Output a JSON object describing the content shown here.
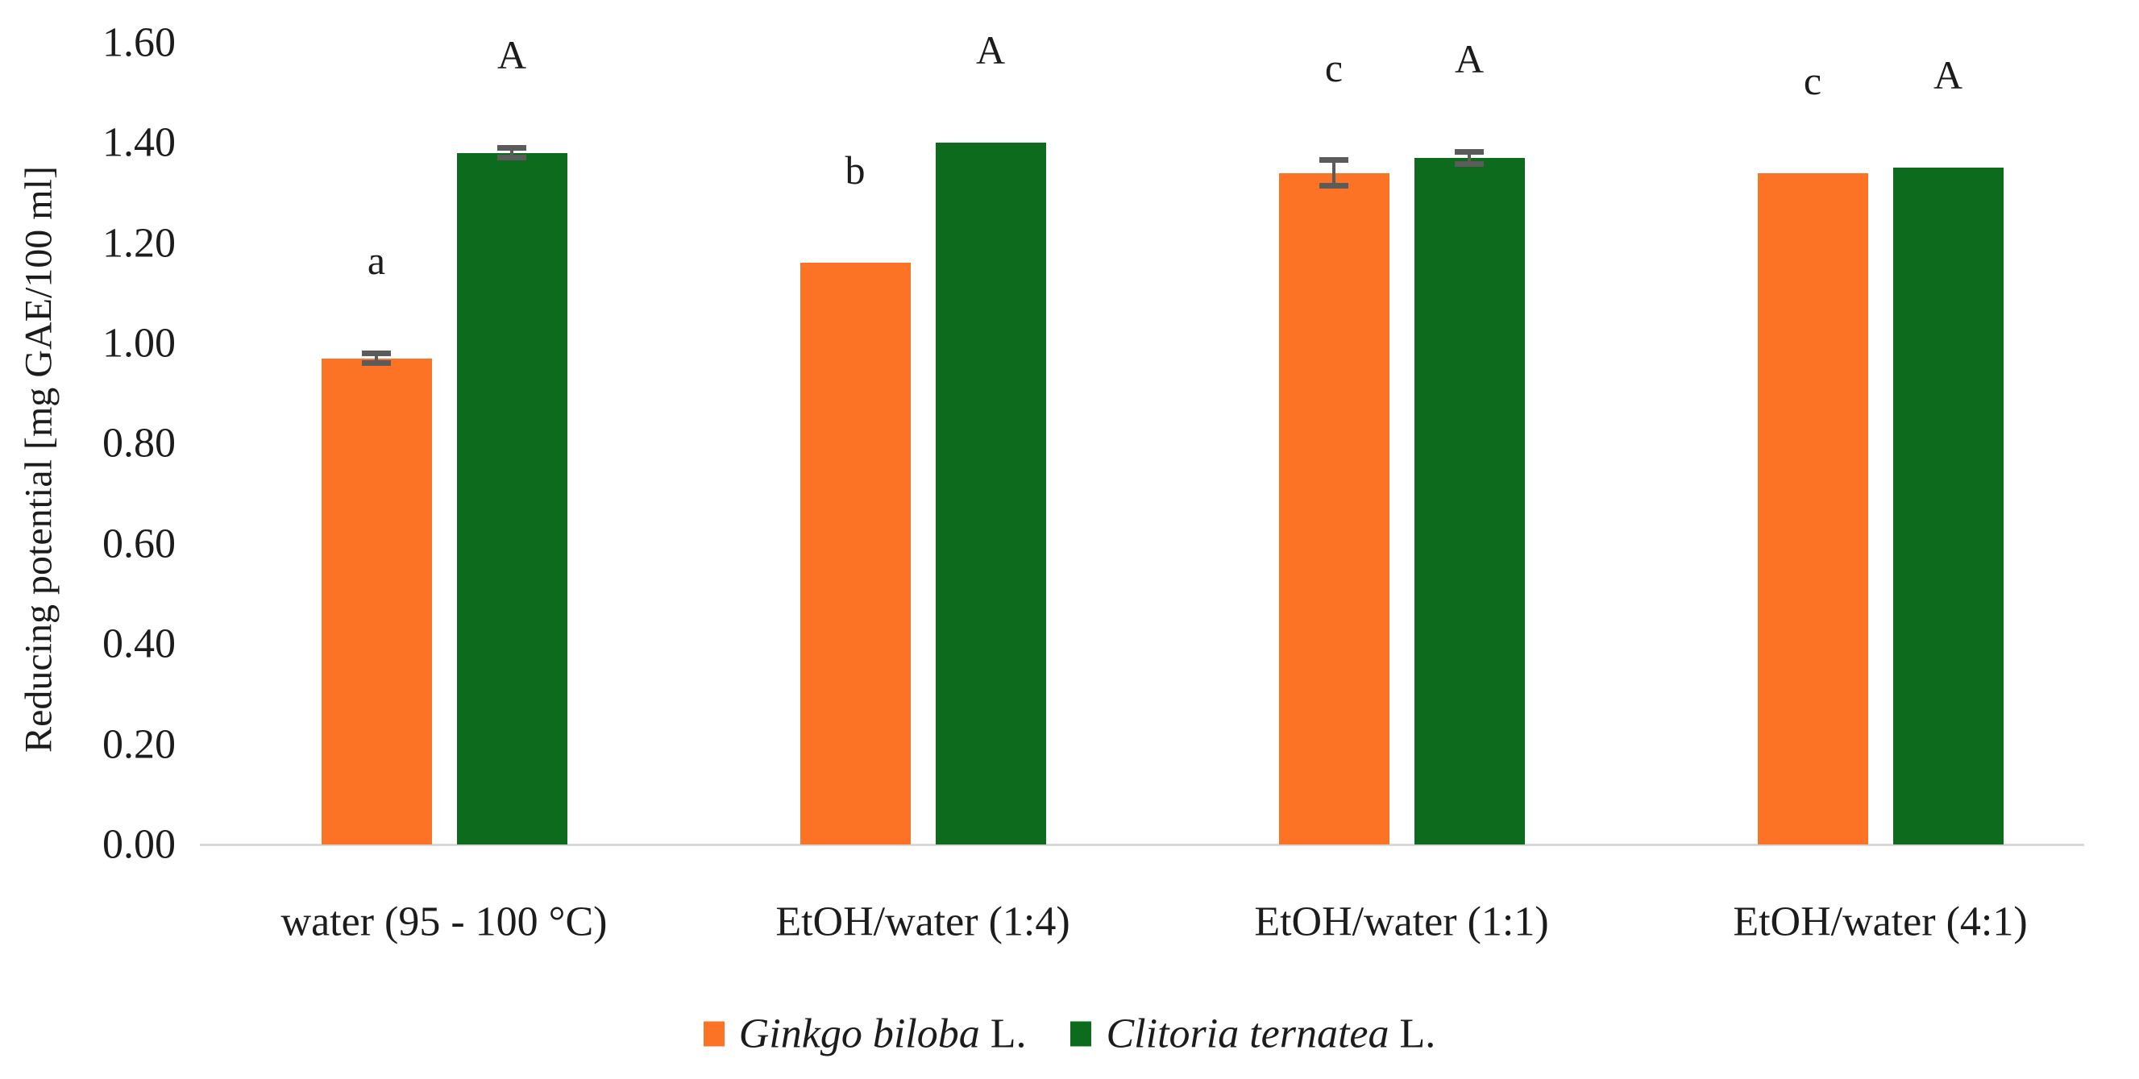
{
  "figure": {
    "background": "#FFFFFF"
  },
  "chart_data": {
    "type": "bar",
    "title": "",
    "xlabel": "",
    "ylabel": "Reducing potential [mg GAE/100 ml]",
    "ylim": [
      0,
      1.6
    ],
    "yticks": [
      0,
      0.2,
      0.4,
      0.6,
      0.8,
      1.0,
      1.2,
      1.4,
      1.6
    ],
    "ytick_labels": [
      "0.00",
      "0.20",
      "0.40",
      "0.60",
      "0.80",
      "1.00",
      "1.20",
      "1.40",
      "1.60"
    ],
    "grid": false,
    "legend_position": "bottom-center",
    "categories": [
      "water (95 - 100 °C)",
      "EtOH/water (1:4)",
      "EtOH/water (1:1)",
      "EtOH/water (4:1)"
    ],
    "series": [
      {
        "name": "Ginkgo biloba L.",
        "legend_italic": "Ginkgo biloba",
        "legend_upright": "L.",
        "color": "#FC7325",
        "values": [
          0.97,
          1.16,
          1.34,
          1.34
        ],
        "errors": [
          0.01,
          0,
          0.025,
          0
        ],
        "significance_letters": [
          "a",
          "b",
          "c",
          "c"
        ]
      },
      {
        "name": "Clitoria ternatea L.",
        "legend_italic": "Clitoria ternatea",
        "legend_upright": "L.",
        "color": "#0D6B1D",
        "values": [
          1.38,
          1.4,
          1.37,
          1.35
        ],
        "errors": [
          0.01,
          0,
          0.012,
          0
        ],
        "significance_letters": [
          "A",
          "A",
          "A",
          "A"
        ]
      }
    ],
    "error_bar_color": "#5B5B5B",
    "axis_line_color": "#D8D8D8",
    "text_color": "#1C1C1C"
  }
}
